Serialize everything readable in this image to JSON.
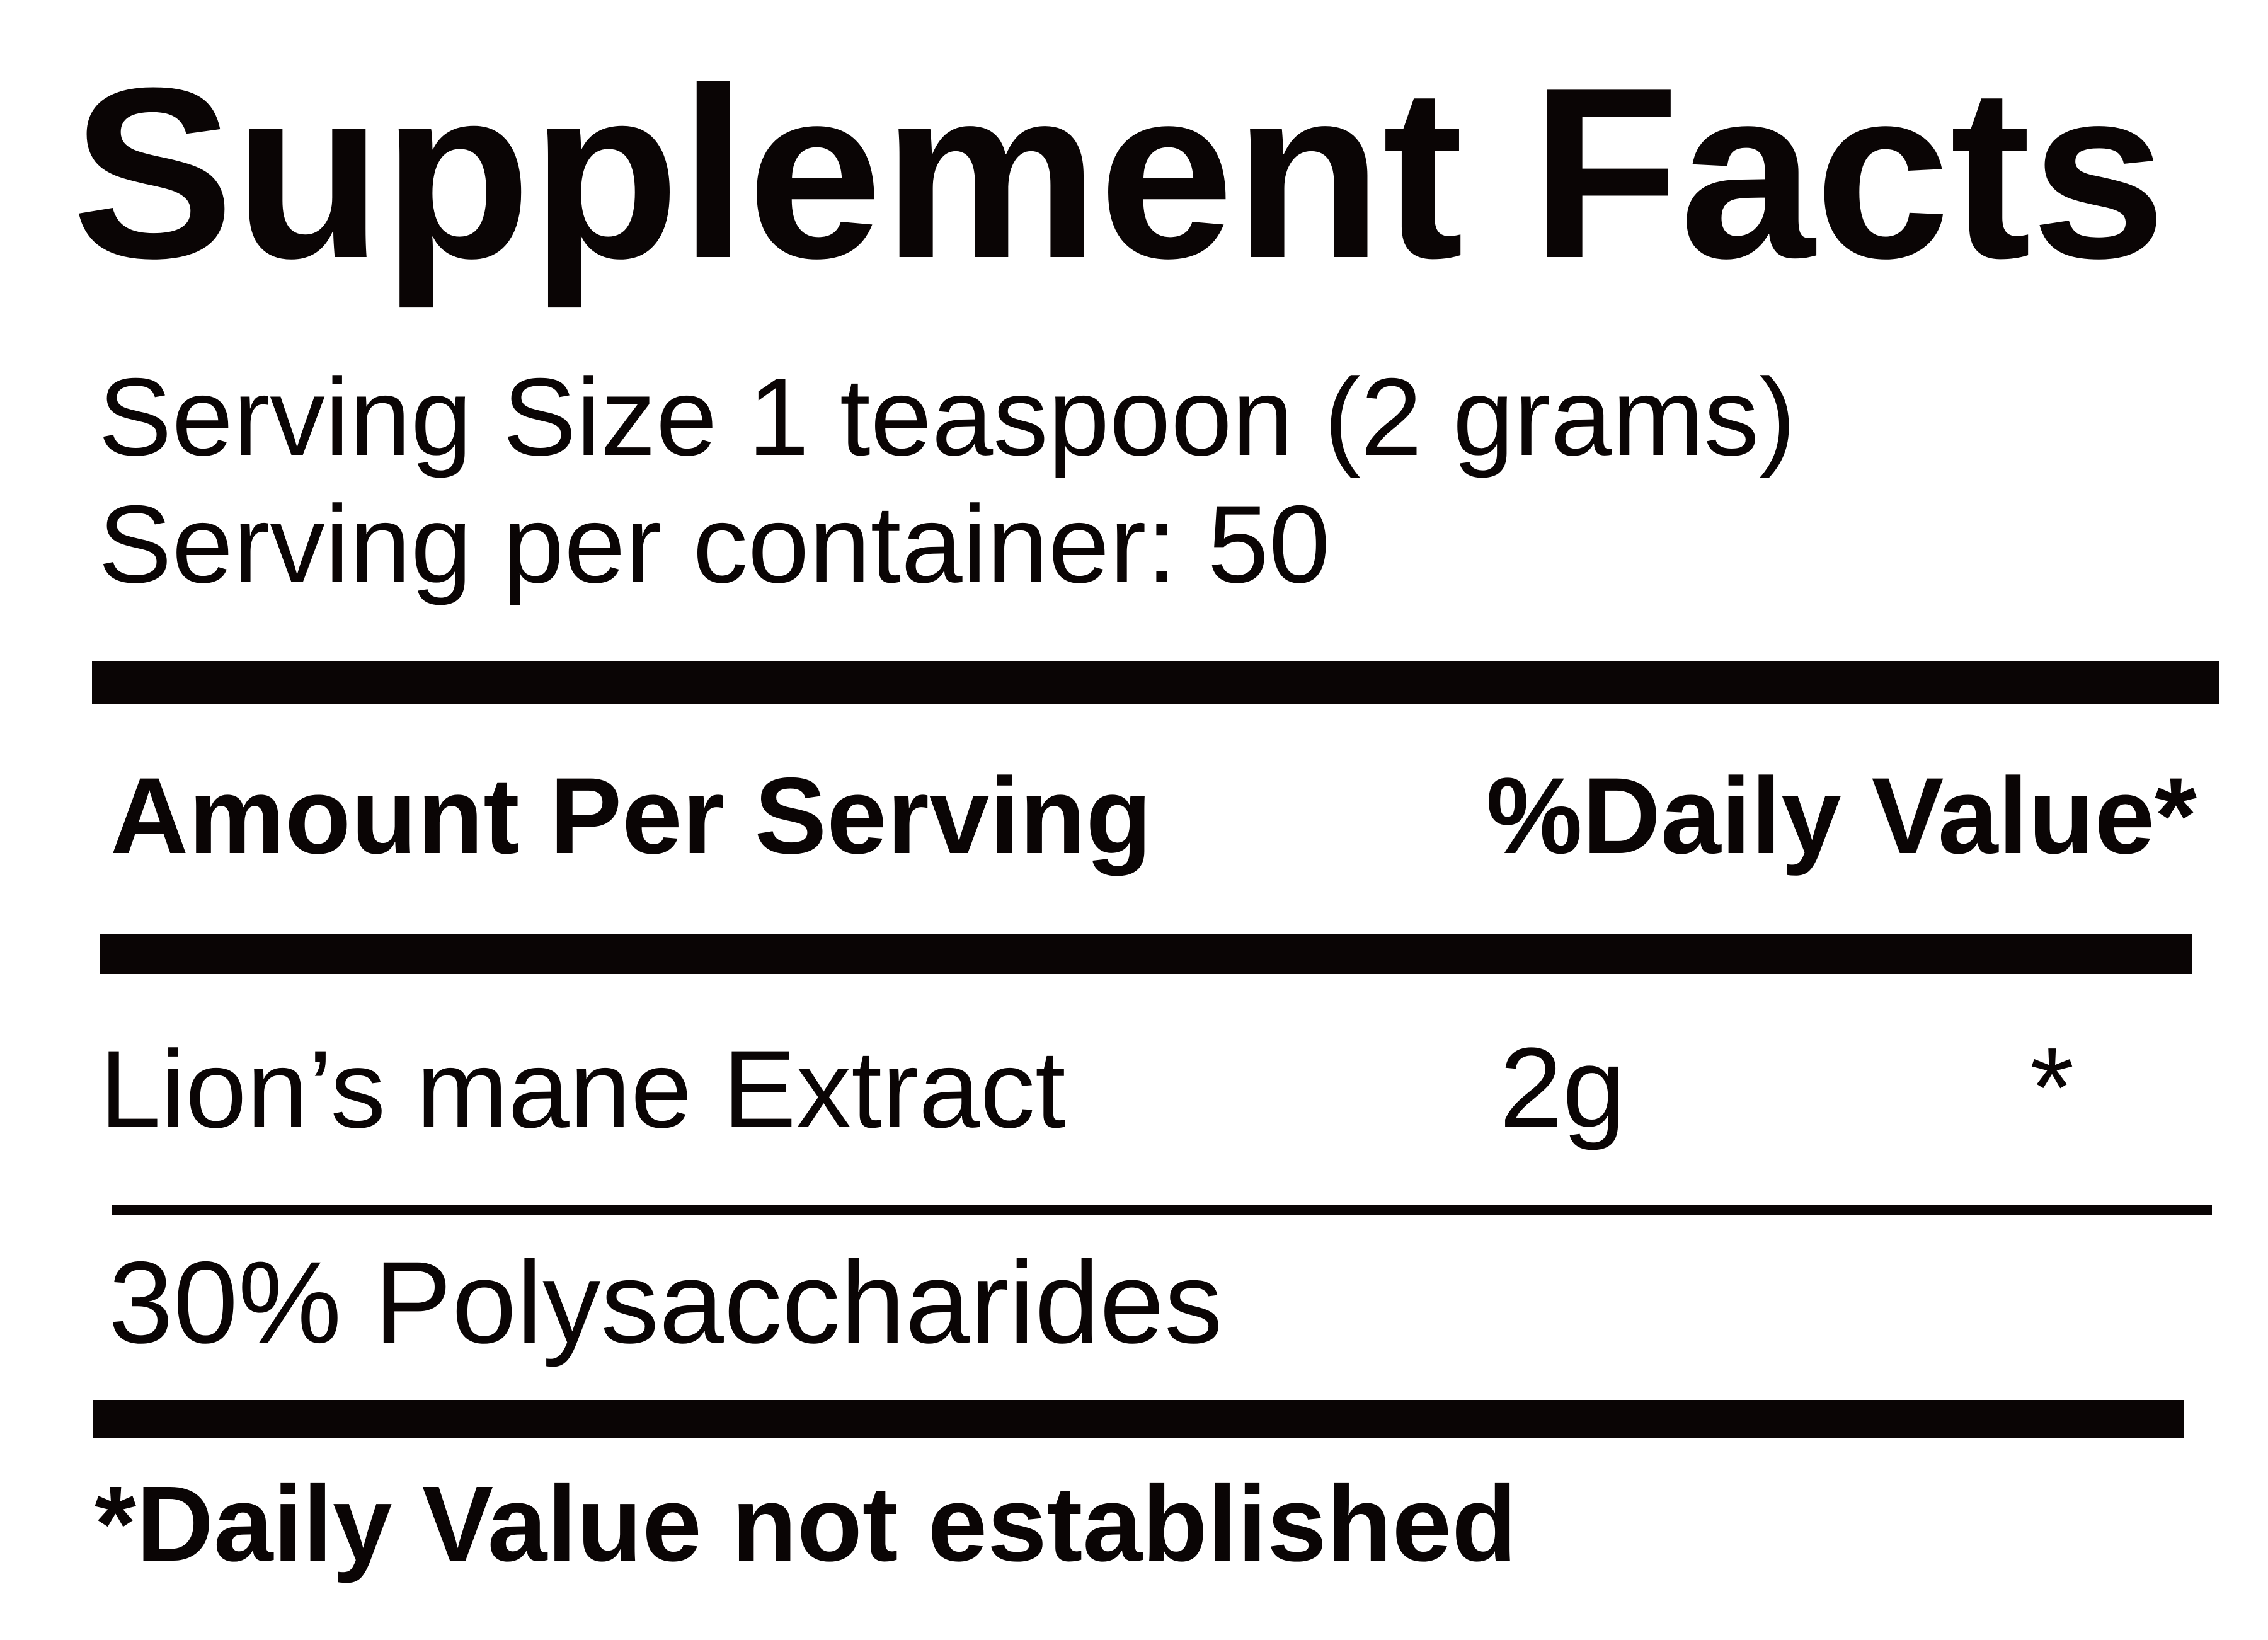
{
  "label": {
    "title": "Supplement Facts",
    "serving_size": "Serving Size 1 teaspoon (2 grams)",
    "servings_per_container": "Serving per container: 50",
    "header": {
      "amount": "Amount Per Serving",
      "daily_value": "%Daily Value*"
    },
    "rows": [
      {
        "name": "Lion’s mane Extract",
        "amount": "2g",
        "daily_value": "*",
        "detail": "30% Polysaccharides"
      }
    ],
    "footnote": "*Daily Value not established",
    "colors": {
      "ink": "#0a0505",
      "background": "#ffffff"
    }
  }
}
